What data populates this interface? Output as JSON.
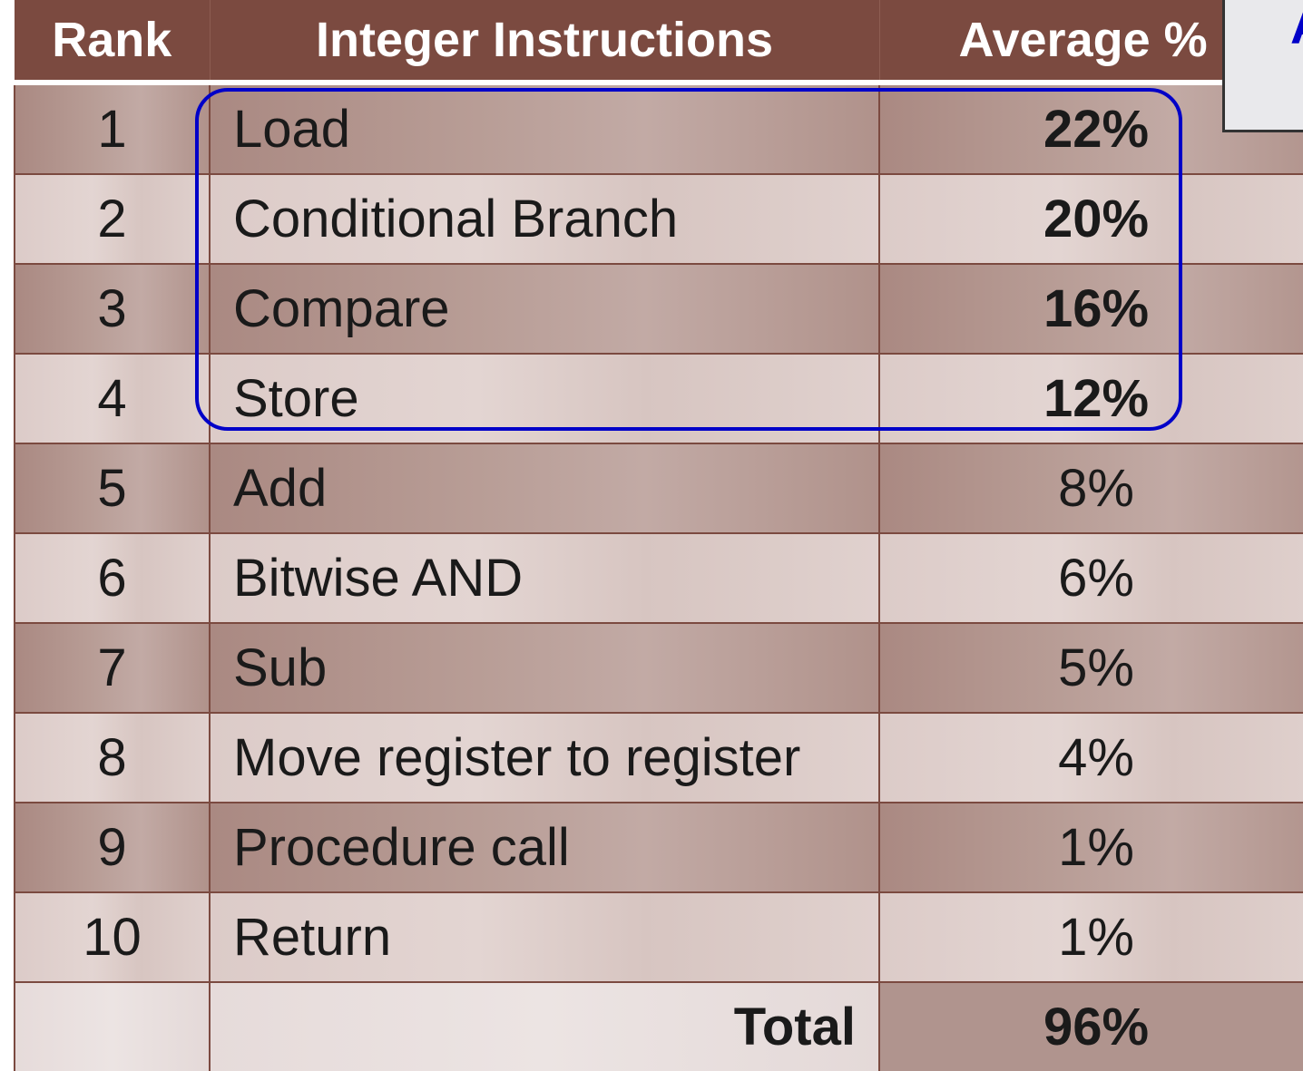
{
  "chart_data": {
    "type": "table",
    "columns": [
      "Rank",
      "Integer Instructions",
      "Average %"
    ],
    "rows": [
      {
        "rank": "1",
        "instruction": "Load",
        "average": "22%",
        "highlighted": true
      },
      {
        "rank": "2",
        "instruction": "Conditional Branch",
        "average": "20%",
        "highlighted": true
      },
      {
        "rank": "3",
        "instruction": "Compare",
        "average": "16%",
        "highlighted": true
      },
      {
        "rank": "4",
        "instruction": "Store",
        "average": "12%",
        "highlighted": true
      },
      {
        "rank": "5",
        "instruction": "Add",
        "average": "8%",
        "highlighted": false
      },
      {
        "rank": "6",
        "instruction": "Bitwise AND",
        "average": "6%",
        "highlighted": false
      },
      {
        "rank": "7",
        "instruction": "Sub",
        "average": "5%",
        "highlighted": false
      },
      {
        "rank": "8",
        "instruction": "Move register to register",
        "average": "4%",
        "highlighted": false
      },
      {
        "rank": "9",
        "instruction": "Procedure call",
        "average": "1%",
        "highlighted": false
      },
      {
        "rank": "10",
        "instruction": "Return",
        "average": "1%",
        "highlighted": false
      }
    ],
    "total": {
      "label": "Total",
      "value": "96%"
    },
    "values_percent": [
      22,
      20,
      16,
      12,
      8,
      6,
      5,
      4,
      1,
      1
    ],
    "total_percent": 96
  },
  "callout": {
    "text": "A"
  },
  "colors": {
    "header_bg": "#7b4a40",
    "header_text": "#ffffff",
    "row_dark": "#b0928b",
    "row_light": "#dccbc8",
    "highlight_border": "#0000c8"
  }
}
